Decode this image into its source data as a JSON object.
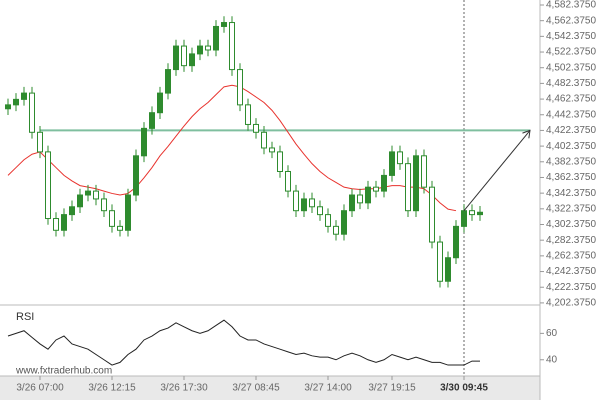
{
  "chart_data": [
    {
      "type": "candlestick",
      "xlim": [
        -1,
        66.5
      ],
      "xticks": [
        {
          "value": 4,
          "label": "3/26 07:00"
        },
        {
          "value": 13,
          "label": "3/26 12:15"
        },
        {
          "value": 22,
          "label": "3/26 17:30"
        },
        {
          "value": 31,
          "label": "3/27 08:45"
        },
        {
          "value": 40,
          "label": "3/27 14:00"
        },
        {
          "value": 48,
          "label": "3/27 19:15"
        },
        {
          "value": 57,
          "label": "3/30 09:45"
        }
      ],
      "ylim": [
        4199.7,
        4588.75
      ],
      "yticks": [
        {
          "value": 4582.375,
          "label": "4,582.3750"
        },
        {
          "value": 4562.375,
          "label": "4,562.3750"
        },
        {
          "value": 4542.375,
          "label": "4,542.3750"
        },
        {
          "value": 4522.375,
          "label": "4,522.3750"
        },
        {
          "value": 4502.375,
          "label": "4,502.3750"
        },
        {
          "value": 4482.375,
          "label": "4,482.3750"
        },
        {
          "value": 4462.375,
          "label": "4,462.3750"
        },
        {
          "value": 4442.375,
          "label": "4,442.3750"
        },
        {
          "value": 4422.375,
          "label": "4,422.3750"
        },
        {
          "value": 4402.375,
          "label": "4,402.3750"
        },
        {
          "value": 4382.375,
          "label": "4,382.3750"
        },
        {
          "value": 4362.375,
          "label": "4,362.3750"
        },
        {
          "value": 4342.375,
          "label": "4,342.3750"
        },
        {
          "value": 4322.375,
          "label": "4,322.3750"
        },
        {
          "value": 4302.375,
          "label": "4,302.3750"
        },
        {
          "value": 4282.375,
          "label": "4,282.3750"
        },
        {
          "value": 4262.375,
          "label": "4,262.3750"
        },
        {
          "value": 4242.375,
          "label": "4,242.3750"
        },
        {
          "value": 4222.375,
          "label": "4,222.3750"
        },
        {
          "value": 4202.375,
          "label": "4,202.3750"
        }
      ],
      "color": "#2e8b2e",
      "open": [
        4450,
        4455,
        4462,
        4470,
        4420,
        4395,
        4310,
        4295,
        4315,
        4325,
        4340,
        4345,
        4335,
        4320,
        4300,
        4295,
        4340,
        4390,
        4425,
        4445,
        4470,
        4500,
        4530,
        4505,
        4520,
        4530,
        4525,
        4555,
        4560,
        4500,
        4455,
        4430,
        4420,
        4400,
        4395,
        4370,
        4345,
        4320,
        4335,
        4325,
        4315,
        4300,
        4290,
        4320,
        4340,
        4330,
        4350,
        4345,
        4365,
        4395,
        4380,
        4320,
        4390,
        4350,
        4280,
        4230,
        4260,
        4300,
        4320,
        4315
      ],
      "high": [
        4463,
        4470,
        4478,
        4478,
        4428,
        4403,
        4318,
        4323,
        4333,
        4348,
        4353,
        4353,
        4343,
        4328,
        4308,
        4348,
        4398,
        4433,
        4453,
        4478,
        4508,
        4538,
        4538,
        4528,
        4538,
        4538,
        4563,
        4568,
        4568,
        4508,
        4463,
        4438,
        4428,
        4408,
        4403,
        4378,
        4353,
        4343,
        4343,
        4333,
        4323,
        4308,
        4328,
        4348,
        4348,
        4358,
        4358,
        4373,
        4403,
        4403,
        4388,
        4398,
        4398,
        4358,
        4288,
        4268,
        4308,
        4328,
        4328,
        4326
      ],
      "low": [
        4442,
        4447,
        4454,
        4412,
        4387,
        4302,
        4287,
        4287,
        4307,
        4317,
        4332,
        4327,
        4312,
        4292,
        4287,
        4287,
        4332,
        4382,
        4417,
        4437,
        4462,
        4492,
        4497,
        4497,
        4512,
        4517,
        4517,
        4547,
        4492,
        4447,
        4422,
        4412,
        4392,
        4387,
        4362,
        4337,
        4312,
        4312,
        4317,
        4307,
        4292,
        4282,
        4282,
        4312,
        4322,
        4322,
        4337,
        4337,
        4357,
        4372,
        4312,
        4312,
        4342,
        4272,
        4222,
        4222,
        4252,
        4292,
        4307,
        4307
      ],
      "close": [
        4455,
        4462,
        4470,
        4420,
        4395,
        4310,
        4295,
        4315,
        4325,
        4340,
        4345,
        4335,
        4320,
        4300,
        4295,
        4340,
        4390,
        4425,
        4445,
        4470,
        4500,
        4530,
        4505,
        4520,
        4530,
        4525,
        4555,
        4560,
        4500,
        4455,
        4430,
        4420,
        4400,
        4395,
        4370,
        4345,
        4320,
        4335,
        4325,
        4315,
        4300,
        4290,
        4320,
        4340,
        4330,
        4350,
        4345,
        4365,
        4395,
        4380,
        4320,
        4390,
        4350,
        4280,
        4230,
        4260,
        4300,
        4320,
        4315,
        4318
      ],
      "moving_average": {
        "color": "#e8332e",
        "values": [
          4365,
          4375,
          4385,
          4392,
          4395,
          4385,
          4375,
          4365,
          4358,
          4352,
          4350,
          4348,
          4345,
          4342,
          4340,
          4342,
          4350,
          4362,
          4375,
          4390,
          4402,
          4415,
          4428,
          4440,
          4450,
          4458,
          4468,
          4478,
          4480,
          4478,
          4472,
          4465,
          4458,
          4448,
          4435,
          4420,
          4405,
          4392,
          4380,
          4370,
          4362,
          4356,
          4350,
          4348,
          4347,
          4348,
          4348,
          4350,
          4352,
          4352,
          4350,
          4350,
          4348,
          4340,
          4330,
          4322,
          4320,
          null,
          null,
          null
        ]
      },
      "level": {
        "value": 4422.375,
        "color": "#7fbf9f"
      },
      "watermark": "www.fxtraderhub.com"
    },
    {
      "type": "line",
      "title": "RSI",
      "ylim": [
        27.7,
        81.5
      ],
      "yticks": [
        60,
        40
      ],
      "color": "#222222",
      "values": [
        58,
        60,
        62,
        57,
        52,
        48,
        55,
        58,
        52,
        50,
        48,
        44,
        40,
        36,
        38,
        44,
        48,
        55,
        58,
        62,
        64,
        68,
        65,
        62,
        60,
        62,
        66,
        70,
        65,
        58,
        55,
        55,
        52,
        50,
        48,
        46,
        44,
        45,
        43,
        42,
        42,
        40,
        43,
        45,
        43,
        40,
        38,
        40,
        44,
        42,
        40,
        42,
        40,
        38,
        38,
        36,
        36,
        36,
        39,
        39
      ]
    }
  ]
}
